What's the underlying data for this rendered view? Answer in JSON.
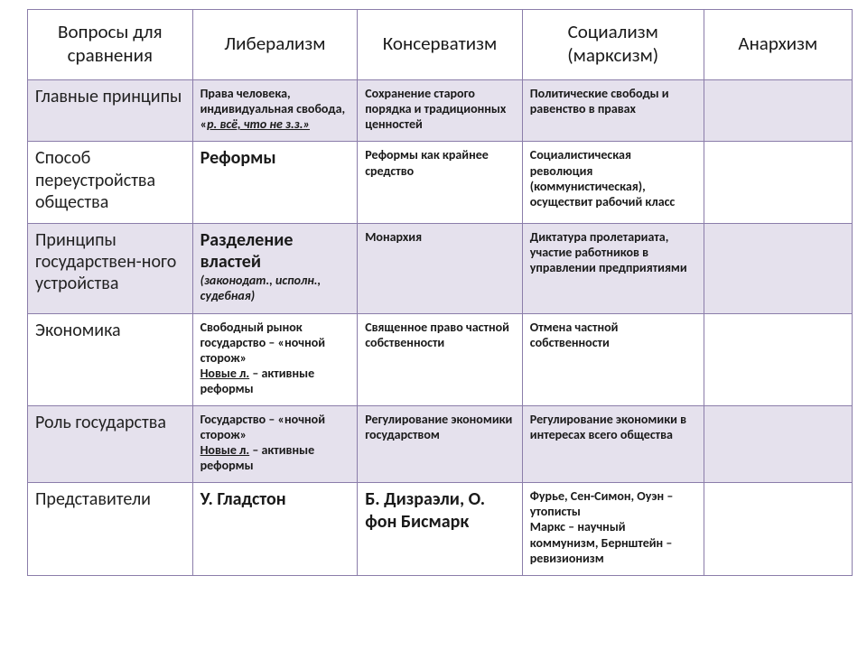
{
  "table": {
    "type": "table",
    "colors": {
      "border": "#8b7daa",
      "header_bg": "#ffffff",
      "row_odd_bg": "#e5e1ed",
      "row_even_bg": "#ffffff",
      "text": "#1a1a1a"
    },
    "font": {
      "family": "Calibri",
      "header_size_pt": 16,
      "rowlabel_size_pt": 15,
      "cell_size_pt": 10.5,
      "big_size_pt": 15
    },
    "columns": [
      "Вопросы для сравнения",
      "Либерализм",
      "Консерватизм",
      "Социализм (марксизм)",
      "Анархизм"
    ],
    "col_widths_pct": [
      20,
      20,
      20,
      22,
      18
    ],
    "rows": [
      {
        "label": "Главные принципы",
        "lib": {
          "plain1": "Права человека, индивидуальная свобода, «",
          "ital_u": "р. всё, что не з.з.»"
        },
        "cons": {
          "plain1": "Сохранение старого порядка и традиционных ценностей"
        },
        "soc": {
          "plain1": "Политические свободы и равенство в правах"
        },
        "anar": {
          "plain1": ""
        }
      },
      {
        "label": "Способ переустройства общества",
        "lib": {
          "big": "Реформы"
        },
        "cons": {
          "plain1": "Реформы как крайнее средство"
        },
        "soc": {
          "plain1": "Социалистическая революция (коммунистическая), осуществит рабочий класс"
        },
        "anar": {
          "plain1": ""
        }
      },
      {
        "label": "Принципы государствен-ного устройства",
        "lib": {
          "big": "Разделение властей",
          "sub_it": "(законодат., исполн., судебная)"
        },
        "cons": {
          "plain1": "Монархия"
        },
        "soc": {
          "plain1": "Диктатура пролетариата, участие работников в управлении предприятиями"
        },
        "anar": {
          "plain1": ""
        }
      },
      {
        "label": "Экономика",
        "lib": {
          "plain1": "Свободный рынок государство – «ночной сторож»",
          "ul": "Новые л.",
          "after_ul": " – активные реформы"
        },
        "cons": {
          "plain1": "Священное право частной собственности"
        },
        "soc": {
          "plain1": "Отмена частной собственности"
        },
        "anar": {
          "plain1": ""
        }
      },
      {
        "label": "Роль государства",
        "lib": {
          "plain1": "Государство – «ночной сторож»",
          "ul": "Новые л.",
          "after_ul": " – активные реформы"
        },
        "cons": {
          "plain1": "Регулирование экономики государством"
        },
        "soc": {
          "plain1": "Регулирование экономики в интересах всего общества"
        },
        "anar": {
          "plain1": ""
        }
      },
      {
        "label": "Представители",
        "lib": {
          "big": "У. Гладстон"
        },
        "cons": {
          "big": "Б. Дизраэли, О. фон Бисмарк"
        },
        "soc": {
          "plain1": "Фурье, Сен-Симон, Оуэн – утописты",
          "plain2": "Маркс – научный коммунизм, Бернштейн – ревизионизм"
        },
        "anar": {
          "plain1": ""
        }
      }
    ]
  }
}
